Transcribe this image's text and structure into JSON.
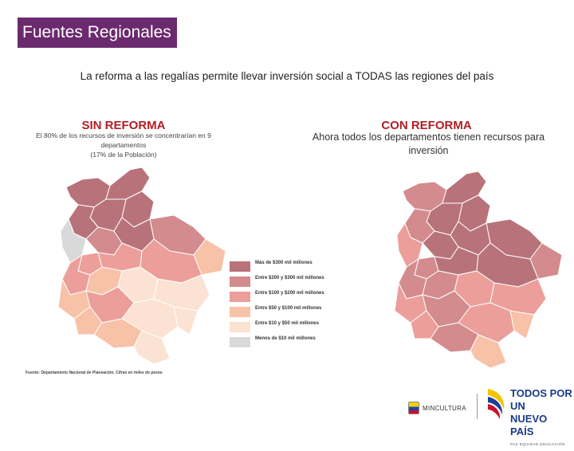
{
  "header": {
    "title": "Fuentes Regionales"
  },
  "subtitle": "La reforma a las regalías permite llevar inversión social a TODAS las regiones del país",
  "left": {
    "heading": "SIN REFORMA",
    "note_line1": "El 80% de los recursos de inversión se concentrarían en 9",
    "note_line2": "departamentos",
    "note_line3": "(17% de la Población)"
  },
  "right": {
    "heading": "CON REFORMA",
    "note_line1": "Ahora todos los departamentos tienen recursos para",
    "note_line2": "inversión"
  },
  "legend": {
    "items": [
      {
        "label": "Más de $300 mil millones",
        "color": "#b8737a"
      },
      {
        "label": "Entre $200 y $300 mil millones",
        "color": "#d38b8e"
      },
      {
        "label": "Entre $100 y $200 mil millones",
        "color": "#ec9e9a"
      },
      {
        "label": "Entre $50 y $100 mil millones",
        "color": "#f7c2a8"
      },
      {
        "label": "Entre $10 y $50 mil millones",
        "color": "#fbe2d2"
      },
      {
        "label": "Menos de $10 mil millones",
        "color": "#d9d9d9"
      }
    ]
  },
  "source": "Fuente: Departamento Nacional de Planeación. Cifras en miles de pesos",
  "logos": {
    "ministry": "MINCULTURA",
    "gov_line1": "TODOS POR UN",
    "gov_line2": "NUEVO PAÍS",
    "gov_line3": "PAZ EQUIDAD EDUCACIÓN"
  },
  "colors": {
    "title_bg": "#6b2a6e",
    "heading": "#b01e25"
  }
}
